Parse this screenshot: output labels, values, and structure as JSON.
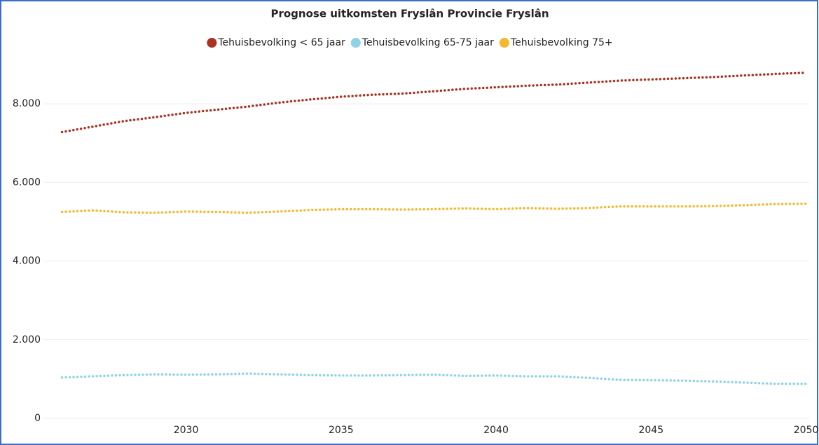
{
  "chart_data": {
    "type": "line",
    "title": "Prognose uitkomsten Fryslân Provincie Fryslân",
    "x": [
      2026,
      2027,
      2028,
      2029,
      2030,
      2031,
      2032,
      2033,
      2034,
      2035,
      2036,
      2037,
      2038,
      2039,
      2040,
      2041,
      2042,
      2043,
      2044,
      2045,
      2046,
      2047,
      2048,
      2049,
      2050
    ],
    "series": [
      {
        "name": "Tehuisbevolking < 65 jaar",
        "color": "#a93222",
        "values": [
          7280,
          7420,
          7560,
          7660,
          7770,
          7850,
          7930,
          8030,
          8110,
          8180,
          8230,
          8260,
          8320,
          8380,
          8420,
          8460,
          8490,
          8540,
          8590,
          8620,
          8650,
          8680,
          8720,
          8760,
          8790
        ]
      },
      {
        "name": "Tehuisbevolking 65-75 jaar",
        "color": "#8ed3e6",
        "values": [
          1040,
          1070,
          1100,
          1120,
          1110,
          1120,
          1140,
          1120,
          1100,
          1090,
          1090,
          1100,
          1110,
          1080,
          1090,
          1070,
          1070,
          1030,
          980,
          970,
          960,
          940,
          910,
          880,
          880
        ]
      },
      {
        "name": "Tehuisbevolking 75+",
        "color": "#f5b92f",
        "values": [
          5250,
          5290,
          5240,
          5230,
          5260,
          5250,
          5230,
          5260,
          5300,
          5320,
          5320,
          5310,
          5320,
          5340,
          5320,
          5350,
          5330,
          5350,
          5390,
          5390,
          5390,
          5400,
          5420,
          5450,
          5460
        ]
      }
    ],
    "xlim": [
      2025.4,
      2050.1
    ],
    "xticks": [
      2030,
      2035,
      2040,
      2045,
      2050
    ],
    "ylim": [
      0,
      9000
    ],
    "yticks": [
      0,
      {
        "value": 2000,
        "label": "2.000"
      },
      {
        "value": 4000,
        "label": "4.000"
      },
      {
        "value": 6000,
        "label": "6.000"
      },
      {
        "value": 8000,
        "label": "8.000"
      }
    ],
    "grid": true
  }
}
